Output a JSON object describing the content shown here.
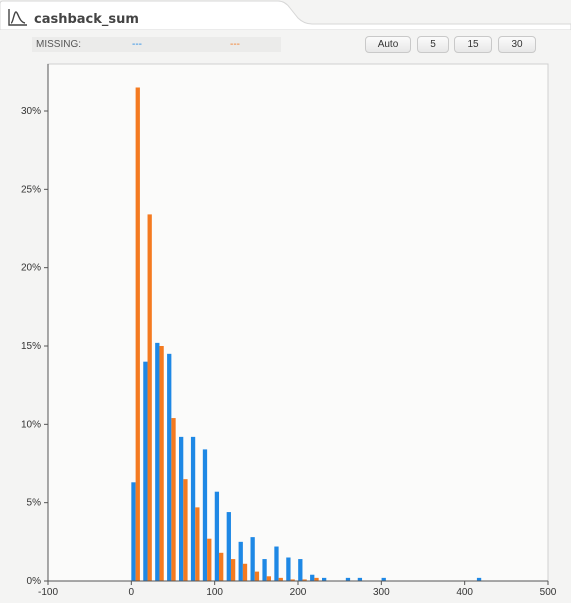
{
  "header": {
    "title": "cashback_sum",
    "icon": "distribution-curve-icon"
  },
  "missing": {
    "label": "MISSING:",
    "series1_value": "---",
    "series2_value": "---"
  },
  "bin_buttons": [
    "Auto",
    "5",
    "15",
    "30"
  ],
  "colors": {
    "series1": "#1e88e5",
    "series2": "#f47a20",
    "plot_bg": "#fbfbfa",
    "axis": "#555555"
  },
  "chart_data": {
    "type": "bar",
    "xlim": [
      -100,
      500
    ],
    "ylim": [
      0,
      0.33
    ],
    "x_ticks": [
      -100,
      0,
      100,
      200,
      300,
      400,
      500
    ],
    "x_tick_labels": [
      "-100",
      "0",
      "100",
      "200",
      "300",
      "400",
      "500"
    ],
    "y_ticks": [
      0,
      0.05,
      0.1,
      0.15,
      0.2,
      0.25,
      0.3
    ],
    "y_tick_labels": [
      "0%",
      "5%",
      "10%",
      "15%",
      "20%",
      "25%",
      "30%"
    ],
    "grid": false,
    "legend": "none",
    "bin_width": 14.3,
    "bin_starts": [
      0,
      14.3,
      28.6,
      42.9,
      57.2,
      71.5,
      85.8,
      100.1,
      114.4,
      128.7,
      143,
      157.3,
      171.6,
      185.9,
      200.2,
      214.5,
      228.8,
      243.1,
      257.4,
      271.7,
      286,
      300.3,
      314.6,
      328.9,
      343.2,
      357.5,
      371.8,
      386.1,
      400.4,
      414.7
    ],
    "series": [
      {
        "values": [
          0.063,
          0.14,
          0.152,
          0.145,
          0.092,
          0.092,
          0.084,
          0.057,
          0.044,
          0.025,
          0.028,
          0.014,
          0.022,
          0.015,
          0.014,
          0.004,
          0.002,
          0,
          0.002,
          0.002,
          0,
          0.002,
          0,
          0,
          0,
          0,
          0,
          0,
          0,
          0.002
        ]
      },
      {
        "values": [
          0.315,
          0.234,
          0.15,
          0.104,
          0.065,
          0.047,
          0.027,
          0.018,
          0.014,
          0.011,
          0.006,
          0.003,
          0.002,
          0.001,
          0.001,
          0.002,
          0,
          0,
          0,
          0,
          0,
          0,
          0,
          0,
          0,
          0,
          0,
          0,
          0,
          0
        ]
      }
    ]
  }
}
